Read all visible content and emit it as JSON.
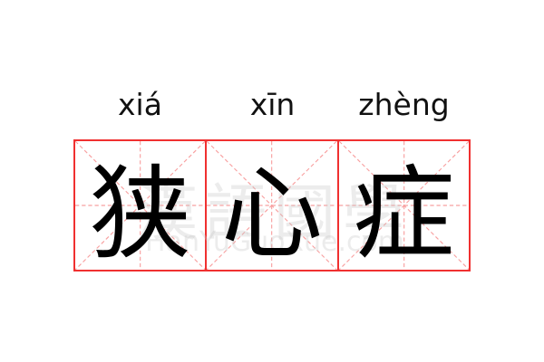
{
  "characters": [
    {
      "pinyin": "xiá",
      "hanzi": "狭"
    },
    {
      "pinyin": "xīn",
      "hanzi": "心"
    },
    {
      "pinyin": "zhèng",
      "hanzi": "症"
    }
  ],
  "watermark": {
    "chinese": "漢語國學",
    "latin": "HanYuGuoXue.com"
  },
  "colors": {
    "grid_border": "#f03030",
    "guide_lines": "#f8a0a0"
  }
}
